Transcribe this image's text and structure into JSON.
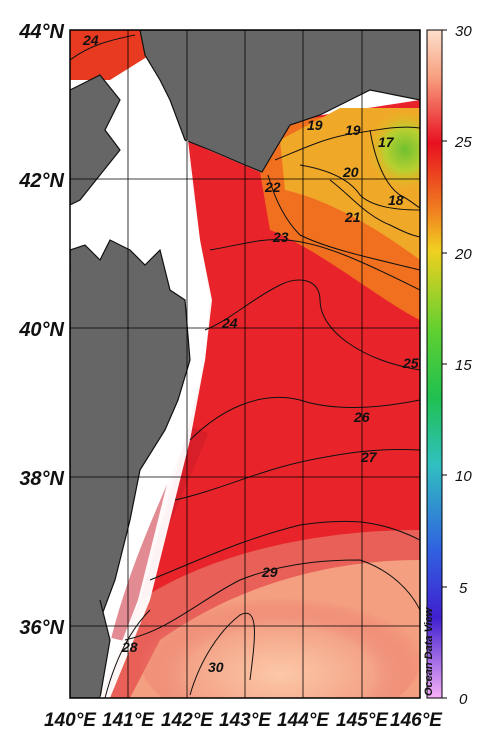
{
  "map": {
    "region": "Off Tohoku / Hokkaido, Japan",
    "lat_labels": [
      "44°N",
      "42°N",
      "40°N",
      "38°N",
      "36°N"
    ],
    "lon_labels": [
      "140°E",
      "141°E",
      "142°E",
      "143°E",
      "144°E",
      "145°E",
      "146°E"
    ],
    "contour_labels": [
      {
        "text": "24",
        "id": "contour-24-north"
      },
      {
        "text": "19",
        "id": "contour-19-a"
      },
      {
        "text": "19",
        "id": "contour-19-b"
      },
      {
        "text": "20",
        "id": "contour-20"
      },
      {
        "text": "17",
        "id": "contour-17"
      },
      {
        "text": "18",
        "id": "contour-18"
      },
      {
        "text": "22",
        "id": "contour-22"
      },
      {
        "text": "21",
        "id": "contour-21"
      },
      {
        "text": "23",
        "id": "contour-23"
      },
      {
        "text": "24",
        "id": "contour-24"
      },
      {
        "text": "25",
        "id": "contour-25"
      },
      {
        "text": "26",
        "id": "contour-26"
      },
      {
        "text": "27",
        "id": "contour-27"
      },
      {
        "text": "29",
        "id": "contour-29"
      },
      {
        "text": "28",
        "id": "contour-28"
      },
      {
        "text": "30",
        "id": "contour-30"
      }
    ],
    "land_color": "#666666",
    "grid_color": "#000000"
  },
  "colorbar": {
    "labels": [
      "30",
      "25",
      "20",
      "15",
      "10",
      "5",
      "0"
    ],
    "stops": [
      "#fcd0b4",
      "#e8202a",
      "#f0a020",
      "#40c040",
      "#30c0c0",
      "#3060e0",
      "#e080f0"
    ]
  },
  "credit": "Ocean Data View"
}
